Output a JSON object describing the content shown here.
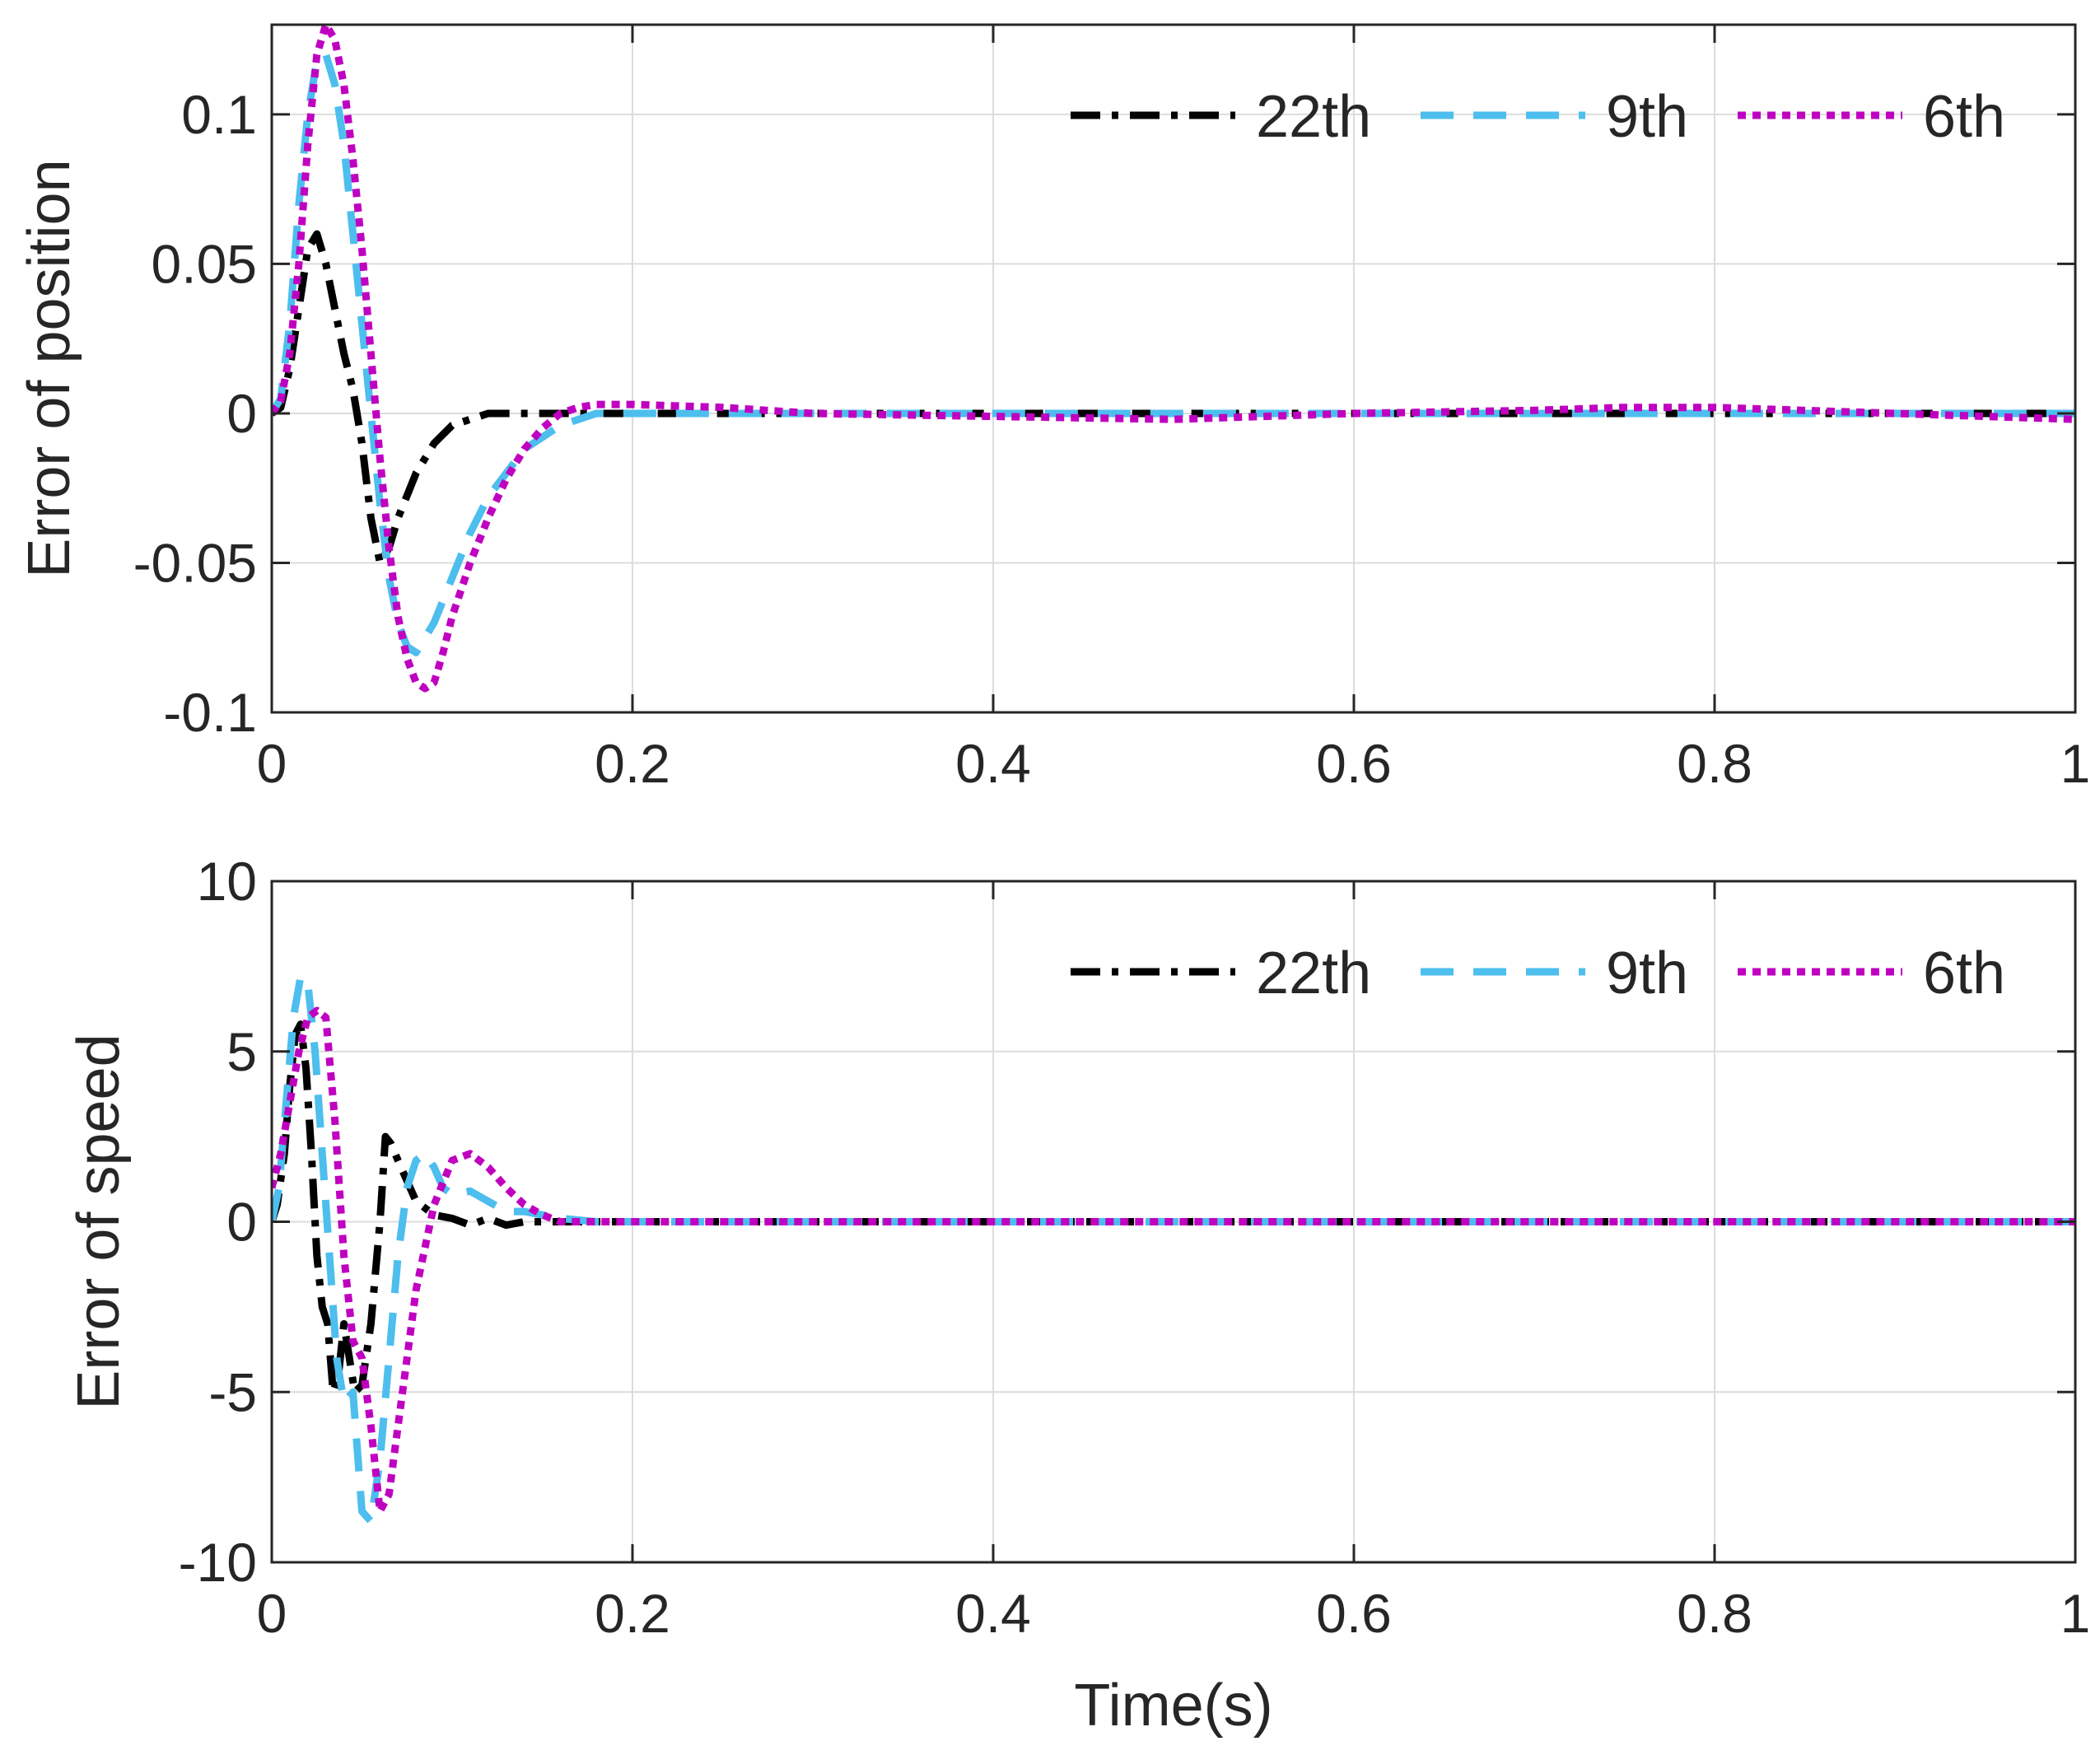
{
  "chart_data": [
    {
      "type": "line",
      "title": "",
      "xlabel": "",
      "ylabel": "Error of position",
      "xlim": [
        0,
        1
      ],
      "ylim": [
        -0.1,
        0.13
      ],
      "grid": true,
      "legend_position": "top-right",
      "x_ticks": [
        0,
        0.2,
        0.4,
        0.6,
        0.8,
        1
      ],
      "x_tick_labels": [
        "0",
        "0.2",
        "0.4",
        "0.6",
        "0.8",
        "1"
      ],
      "y_ticks": [
        -0.1,
        -0.05,
        0,
        0.05,
        0.1
      ],
      "y_tick_labels": [
        "-0.1",
        "-0.05",
        "0",
        "0.05",
        "0.1"
      ],
      "series": [
        {
          "name": "22th",
          "color": "#000000",
          "style": "dashdot",
          "x": [
            0,
            0.005,
            0.01,
            0.015,
            0.02,
            0.025,
            0.03,
            0.035,
            0.04,
            0.045,
            0.05,
            0.055,
            0.06,
            0.065,
            0.07,
            0.08,
            0.09,
            0.1,
            0.11,
            0.12,
            0.14,
            0.16,
            0.2,
            0.3,
            0.4,
            0.5,
            0.6,
            0.7,
            0.8,
            0.9,
            1.0
          ],
          "y": [
            0,
            0.002,
            0.015,
            0.035,
            0.055,
            0.06,
            0.05,
            0.035,
            0.02,
            0.008,
            -0.01,
            -0.035,
            -0.05,
            -0.045,
            -0.035,
            -0.02,
            -0.01,
            -0.004,
            -0.002,
            0,
            0,
            0,
            0,
            0,
            0,
            0,
            0,
            0,
            0,
            0,
            0
          ]
        },
        {
          "name": "9th",
          "color": "#4DBEEE",
          "style": "dashed",
          "x": [
            0,
            0.005,
            0.01,
            0.015,
            0.02,
            0.025,
            0.03,
            0.035,
            0.04,
            0.045,
            0.05,
            0.055,
            0.06,
            0.065,
            0.07,
            0.075,
            0.08,
            0.09,
            0.1,
            0.11,
            0.12,
            0.14,
            0.16,
            0.18,
            0.2,
            0.3,
            0.4,
            0.5,
            0.6,
            0.7,
            0.8,
            0.9,
            1.0
          ],
          "y": [
            0,
            0.005,
            0.03,
            0.07,
            0.1,
            0.118,
            0.12,
            0.11,
            0.09,
            0.06,
            0.03,
            0,
            -0.03,
            -0.055,
            -0.07,
            -0.078,
            -0.08,
            -0.07,
            -0.055,
            -0.04,
            -0.028,
            -0.012,
            -0.004,
            0,
            0,
            0,
            0,
            0,
            0,
            0,
            0,
            0,
            0
          ]
        },
        {
          "name": "6th",
          "color": "#C000C0",
          "style": "dotted",
          "x": [
            0,
            0.005,
            0.01,
            0.015,
            0.02,
            0.025,
            0.03,
            0.035,
            0.04,
            0.045,
            0.05,
            0.055,
            0.06,
            0.065,
            0.07,
            0.075,
            0.08,
            0.085,
            0.09,
            0.095,
            0.1,
            0.11,
            0.12,
            0.13,
            0.14,
            0.15,
            0.16,
            0.17,
            0.18,
            0.2,
            0.25,
            0.3,
            0.4,
            0.5,
            0.6,
            0.7,
            0.75,
            0.8,
            0.9,
            1.0
          ],
          "y": [
            0,
            0.004,
            0.02,
            0.05,
            0.09,
            0.12,
            0.13,
            0.125,
            0.11,
            0.085,
            0.055,
            0.02,
            -0.015,
            -0.045,
            -0.068,
            -0.082,
            -0.09,
            -0.092,
            -0.09,
            -0.08,
            -0.068,
            -0.05,
            -0.035,
            -0.022,
            -0.012,
            -0.005,
            0,
            0.002,
            0.003,
            0.003,
            0.002,
            0,
            -0.001,
            -0.002,
            0,
            0.001,
            0.002,
            0.002,
            0,
            -0.002
          ]
        }
      ]
    },
    {
      "type": "line",
      "title": "",
      "xlabel": "Time(s)",
      "ylabel": "Error of speed",
      "xlim": [
        0,
        1
      ],
      "ylim": [
        -10,
        10
      ],
      "grid": true,
      "legend_position": "top-right",
      "x_ticks": [
        0,
        0.2,
        0.4,
        0.6,
        0.8,
        1
      ],
      "x_tick_labels": [
        "0",
        "0.2",
        "0.4",
        "0.6",
        "0.8",
        "1"
      ],
      "y_ticks": [
        -10,
        -5,
        0,
        5,
        10
      ],
      "y_tick_labels": [
        "-10",
        "-5",
        "0",
        "5",
        "10"
      ],
      "series": [
        {
          "name": "22th",
          "color": "#000000",
          "style": "dashdot",
          "x": [
            0,
            0.003,
            0.007,
            0.01,
            0.013,
            0.016,
            0.019,
            0.022,
            0.025,
            0.028,
            0.031,
            0.034,
            0.037,
            0.04,
            0.043,
            0.046,
            0.05,
            0.055,
            0.06,
            0.063,
            0.066,
            0.07,
            0.075,
            0.08,
            0.09,
            0.1,
            0.11,
            0.12,
            0.13,
            0.14,
            0.15,
            0.17,
            0.2,
            0.4,
            0.6,
            0.8,
            1.0
          ],
          "y": [
            0,
            0.5,
            2,
            4,
            5.5,
            5.8,
            4.5,
            2,
            -1,
            -2.5,
            -3,
            -5,
            -4.5,
            -3,
            -4,
            -5,
            -4.8,
            -3,
            0,
            2.5,
            2.3,
            1.8,
            1.2,
            0.6,
            0.2,
            0.1,
            -0.1,
            0.1,
            -0.1,
            0,
            0,
            0,
            0,
            0,
            0,
            0,
            0
          ]
        },
        {
          "name": "9th",
          "color": "#4DBEEE",
          "style": "dashed",
          "x": [
            0,
            0.004,
            0.008,
            0.012,
            0.016,
            0.02,
            0.024,
            0.028,
            0.032,
            0.036,
            0.04,
            0.045,
            0.05,
            0.055,
            0.06,
            0.065,
            0.07,
            0.075,
            0.08,
            0.085,
            0.09,
            0.095,
            0.1,
            0.11,
            0.12,
            0.13,
            0.14,
            0.15,
            0.16,
            0.18,
            0.2,
            0.4,
            0.6,
            0.8,
            1.0
          ],
          "y": [
            0,
            1,
            3.5,
            6,
            7.2,
            7,
            5,
            2,
            -1,
            -4,
            -5.3,
            -5,
            -8.5,
            -8.8,
            -7,
            -4,
            -1,
            1,
            1.8,
            2,
            1.6,
            1,
            0.8,
            0.9,
            0.6,
            0.3,
            0.3,
            0.2,
            0.1,
            0,
            0,
            0,
            0,
            0,
            0
          ]
        },
        {
          "name": "6th",
          "color": "#C000C0",
          "style": "dotted",
          "x": [
            0,
            0.005,
            0.01,
            0.015,
            0.02,
            0.025,
            0.03,
            0.035,
            0.04,
            0.045,
            0.05,
            0.055,
            0.06,
            0.065,
            0.07,
            0.075,
            0.08,
            0.09,
            0.1,
            0.11,
            0.12,
            0.13,
            0.14,
            0.15,
            0.16,
            0.18,
            0.2,
            0.4,
            0.6,
            0.8,
            1.0
          ],
          "y": [
            1,
            2,
            3.5,
            5,
            6,
            6.2,
            6,
            3,
            -1,
            -3.5,
            -4,
            -6,
            -8.5,
            -8,
            -6,
            -4,
            -2,
            0.5,
            1.8,
            2,
            1.6,
            1,
            0.5,
            0.2,
            0,
            0,
            0,
            0,
            0,
            0,
            0
          ]
        }
      ]
    }
  ]
}
